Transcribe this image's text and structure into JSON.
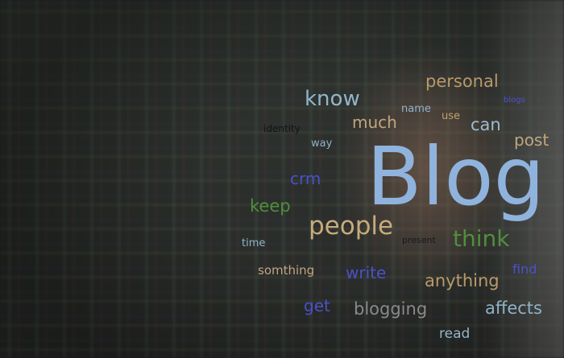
{
  "words": [
    {
      "id": "blog",
      "text": "Blog",
      "color": "#8fb3dd"
    },
    {
      "id": "personal",
      "text": "personal",
      "color": "#b89a6a"
    },
    {
      "id": "know",
      "text": "know",
      "color": "#92b6c9"
    },
    {
      "id": "blogs",
      "text": "blogs",
      "color": "#4a52c8"
    },
    {
      "id": "name",
      "text": "name",
      "color": "#8fb2c8"
    },
    {
      "id": "use",
      "text": "use",
      "color": "#c0a070"
    },
    {
      "id": "much",
      "text": "much",
      "color": "#c2a67c"
    },
    {
      "id": "identity",
      "text": "identity",
      "color": "#141414"
    },
    {
      "id": "can",
      "text": "can",
      "color": "#9dbbd0"
    },
    {
      "id": "way",
      "text": "way",
      "color": "#8fb2c8"
    },
    {
      "id": "post",
      "text": "post",
      "color": "#c2a67c"
    },
    {
      "id": "crm",
      "text": "crm",
      "color": "#4a52c8"
    },
    {
      "id": "keep",
      "text": "keep",
      "color": "#4f8f3d"
    },
    {
      "id": "people",
      "text": "people",
      "color": "#c7ab7c"
    },
    {
      "id": "think",
      "text": "think",
      "color": "#4f8f3d"
    },
    {
      "id": "time",
      "text": "time",
      "color": "#92b6c9"
    },
    {
      "id": "present",
      "text": "present",
      "color": "#1a1a1a"
    },
    {
      "id": "somthing",
      "text": "somthing",
      "color": "#c2a67c"
    },
    {
      "id": "write",
      "text": "write",
      "color": "#4a52c8"
    },
    {
      "id": "find",
      "text": "find",
      "color": "#4a52c8"
    },
    {
      "id": "anything",
      "text": "anything",
      "color": "#b89a6a"
    },
    {
      "id": "get",
      "text": "get",
      "color": "#4a52c8"
    },
    {
      "id": "blogging",
      "text": "blogging",
      "color": "#8a8a8a"
    },
    {
      "id": "affects",
      "text": "affects",
      "color": "#8fb2c8"
    },
    {
      "id": "read",
      "text": "read",
      "color": "#92b6c9"
    }
  ]
}
